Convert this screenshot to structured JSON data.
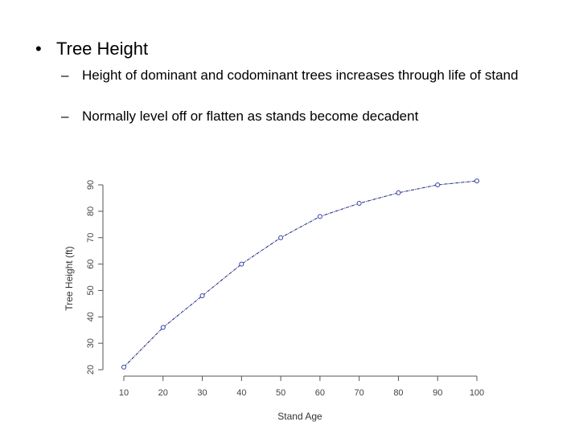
{
  "slide": {
    "bullet": "•",
    "title": "Tree Height",
    "dash": "–",
    "subpoints": [
      "Height of dominant and codominant trees increases through life of stand",
      "Normally level off or flatten as stands become decadent"
    ]
  },
  "chart_data": {
    "type": "line",
    "xlabel": "Stand Age",
    "ylabel": "Tree Height (ft)",
    "x": [
      10,
      20,
      30,
      40,
      50,
      60,
      70,
      80,
      90,
      100
    ],
    "y": [
      21,
      36,
      48,
      60,
      70,
      78,
      83,
      87,
      90,
      91.5
    ],
    "xticks": [
      10,
      20,
      30,
      40,
      50,
      60,
      70,
      80,
      90,
      100
    ],
    "yticks": [
      20,
      30,
      40,
      50,
      60,
      70,
      80,
      90
    ],
    "xlim": [
      10,
      100
    ],
    "ylim": [
      20,
      90
    ],
    "markers": "open-circle",
    "grid": false,
    "colors": {
      "line": "#1a237e",
      "marker": "#303f9f",
      "axis": "#555555"
    }
  }
}
